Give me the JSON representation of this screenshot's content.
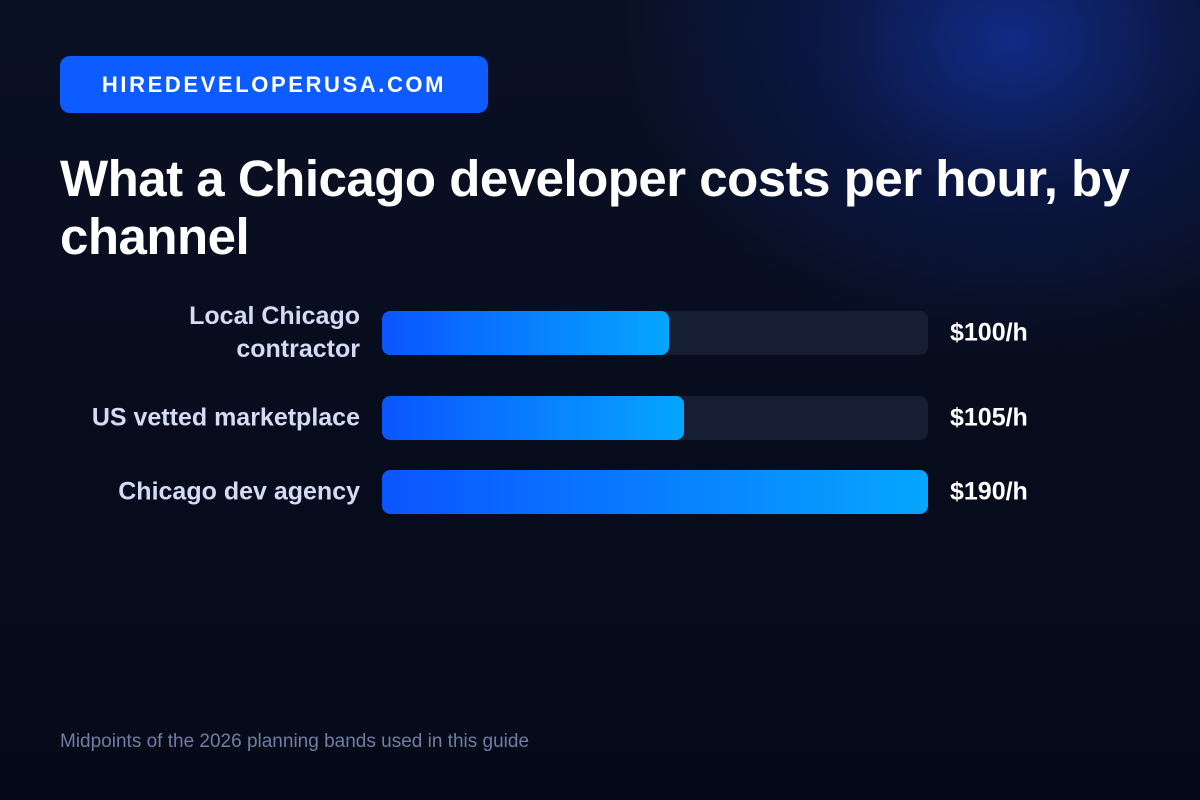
{
  "brand": {
    "label": "HIREDEVELOPERUSA.COM",
    "color": "#0d5cff"
  },
  "footnote": "Midpoints of the 2026 planning bands used in this guide",
  "chart_data": {
    "type": "bar",
    "orientation": "horizontal",
    "title": "What a Chicago developer costs per hour, by channel",
    "categories": [
      "Local Chicago contractor",
      "US vetted marketplace",
      "Chicago dev agency"
    ],
    "values": [
      100,
      105,
      190
    ],
    "value_labels": [
      "$100/h",
      "$105/h",
      "$190/h"
    ],
    "unit": "USD per hour",
    "xlim": [
      0,
      190
    ],
    "grid": false,
    "legend": "none",
    "colors": {
      "bar_start": "#0b55ff",
      "bar_end": "#06a6ff",
      "track": "#161e33"
    }
  }
}
